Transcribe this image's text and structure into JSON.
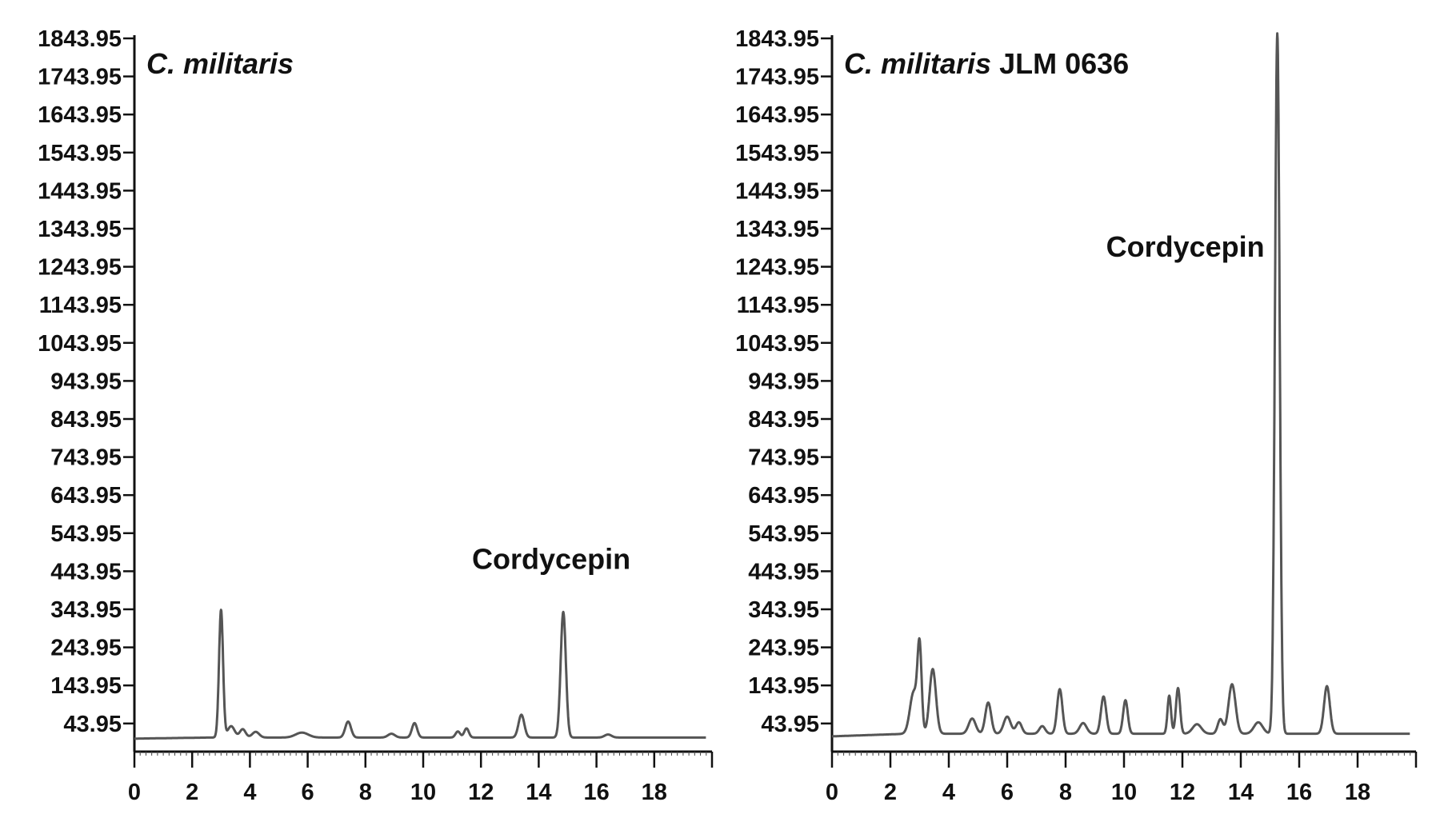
{
  "chart_data": [
    {
      "type": "line",
      "title": "",
      "panel_label": {
        "italic": "C. militaris",
        "suffix": ""
      },
      "xlabel": "",
      "ylabel": "",
      "xlim": [
        0,
        20
      ],
      "ylim": [
        -30,
        1843.95
      ],
      "x_ticks": [
        "0",
        "2",
        "4",
        "6",
        "8",
        "10",
        "12",
        "14",
        "16",
        "18"
      ],
      "y_ticks": [
        "43.95",
        "143.95",
        "243.95",
        "343.95",
        "443.95",
        "543.95",
        "643.95",
        "743.95",
        "843.95",
        "943.95",
        "1043.95",
        "1143.95",
        "1243.95",
        "1343.95",
        "1443.95",
        "1543.95",
        "1643.95",
        "1743.95",
        "1843.95"
      ],
      "baseline": 7,
      "peaks": [
        {
          "x": 3.0,
          "height": 335,
          "width": 0.07
        },
        {
          "x": 3.35,
          "height": 30,
          "width": 0.12
        },
        {
          "x": 3.75,
          "height": 22,
          "width": 0.1
        },
        {
          "x": 4.2,
          "height": 15,
          "width": 0.12
        },
        {
          "x": 5.8,
          "height": 13,
          "width": 0.22
        },
        {
          "x": 7.4,
          "height": 42,
          "width": 0.1
        },
        {
          "x": 8.9,
          "height": 10,
          "width": 0.12
        },
        {
          "x": 9.7,
          "height": 38,
          "width": 0.09
        },
        {
          "x": 11.2,
          "height": 16,
          "width": 0.08
        },
        {
          "x": 11.5,
          "height": 24,
          "width": 0.08
        },
        {
          "x": 13.4,
          "height": 60,
          "width": 0.1
        },
        {
          "x": 14.85,
          "height": 330,
          "width": 0.09
        },
        {
          "x": 16.4,
          "height": 8,
          "width": 0.12
        }
      ],
      "annotations": [
        {
          "text": "Cordycepin",
          "x": 14.85,
          "y": 450
        }
      ]
    },
    {
      "type": "line",
      "title": "",
      "panel_label": {
        "italic": "C. militaris",
        "suffix": " JLM 0636"
      },
      "xlabel": "",
      "ylabel": "",
      "xlim": [
        0,
        20
      ],
      "ylim": [
        -30,
        1843.95
      ],
      "x_ticks": [
        "0",
        "2",
        "4",
        "6",
        "8",
        "10",
        "12",
        "14",
        "16",
        "18"
      ],
      "y_ticks": [
        "43.95",
        "143.95",
        "243.95",
        "343.95",
        "443.95",
        "543.95",
        "643.95",
        "743.95",
        "843.95",
        "943.95",
        "1043.95",
        "1143.95",
        "1243.95",
        "1343.95",
        "1443.95",
        "1543.95",
        "1643.95",
        "1743.95",
        "1843.95"
      ],
      "baseline": 17,
      "peaks": [
        {
          "x": 2.8,
          "height": 110,
          "width": 0.13
        },
        {
          "x": 3.0,
          "height": 215,
          "width": 0.07
        },
        {
          "x": 3.45,
          "height": 170,
          "width": 0.11
        },
        {
          "x": 4.8,
          "height": 40,
          "width": 0.12
        },
        {
          "x": 5.35,
          "height": 82,
          "width": 0.1
        },
        {
          "x": 6.0,
          "height": 45,
          "width": 0.12
        },
        {
          "x": 6.4,
          "height": 30,
          "width": 0.1
        },
        {
          "x": 7.2,
          "height": 20,
          "width": 0.1
        },
        {
          "x": 7.8,
          "height": 117,
          "width": 0.09
        },
        {
          "x": 8.6,
          "height": 28,
          "width": 0.12
        },
        {
          "x": 9.3,
          "height": 98,
          "width": 0.09
        },
        {
          "x": 10.05,
          "height": 88,
          "width": 0.08
        },
        {
          "x": 11.55,
          "height": 100,
          "width": 0.06
        },
        {
          "x": 11.85,
          "height": 120,
          "width": 0.07
        },
        {
          "x": 12.5,
          "height": 25,
          "width": 0.15
        },
        {
          "x": 13.3,
          "height": 38,
          "width": 0.09
        },
        {
          "x": 13.7,
          "height": 130,
          "width": 0.12
        },
        {
          "x": 14.6,
          "height": 30,
          "width": 0.15
        },
        {
          "x": 15.25,
          "height": 1840,
          "width": 0.08
        },
        {
          "x": 16.95,
          "height": 125,
          "width": 0.1
        }
      ],
      "annotations": [
        {
          "text": "Cordycepin",
          "x": 15.25,
          "y": 1270
        }
      ]
    }
  ]
}
